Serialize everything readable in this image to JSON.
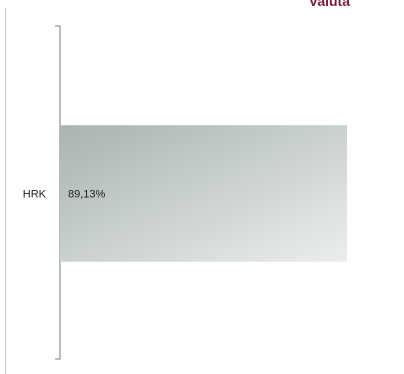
{
  "header": {
    "title": "Valuta"
  },
  "chart_data": {
    "type": "bar",
    "orientation": "horizontal",
    "categories": [
      "HRK"
    ],
    "values": [
      89.13
    ],
    "value_labels": [
      "89,13%"
    ],
    "xlim": [
      0,
      100
    ],
    "xlabel": "",
    "ylabel": "",
    "grid": false,
    "legend": "none",
    "colors": {
      "bar_start": "#a9b3b0",
      "bar_end": "#eceeed",
      "axis": "#7a7a7a",
      "title": "#7b1a3f"
    }
  }
}
